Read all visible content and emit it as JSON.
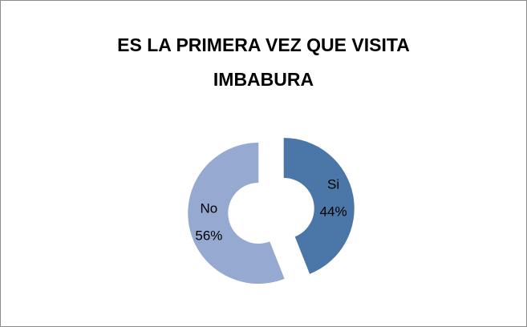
{
  "chart_data": {
    "type": "doughnut",
    "title": "ES LA PRIMERA VEZ QUE VISITA IMBABURA",
    "categories": [
      "Si",
      "No"
    ],
    "values": [
      44,
      56
    ],
    "value_labels": [
      "44%",
      "56%"
    ],
    "colors": [
      "#4a76a8",
      "#95a9d1"
    ]
  }
}
